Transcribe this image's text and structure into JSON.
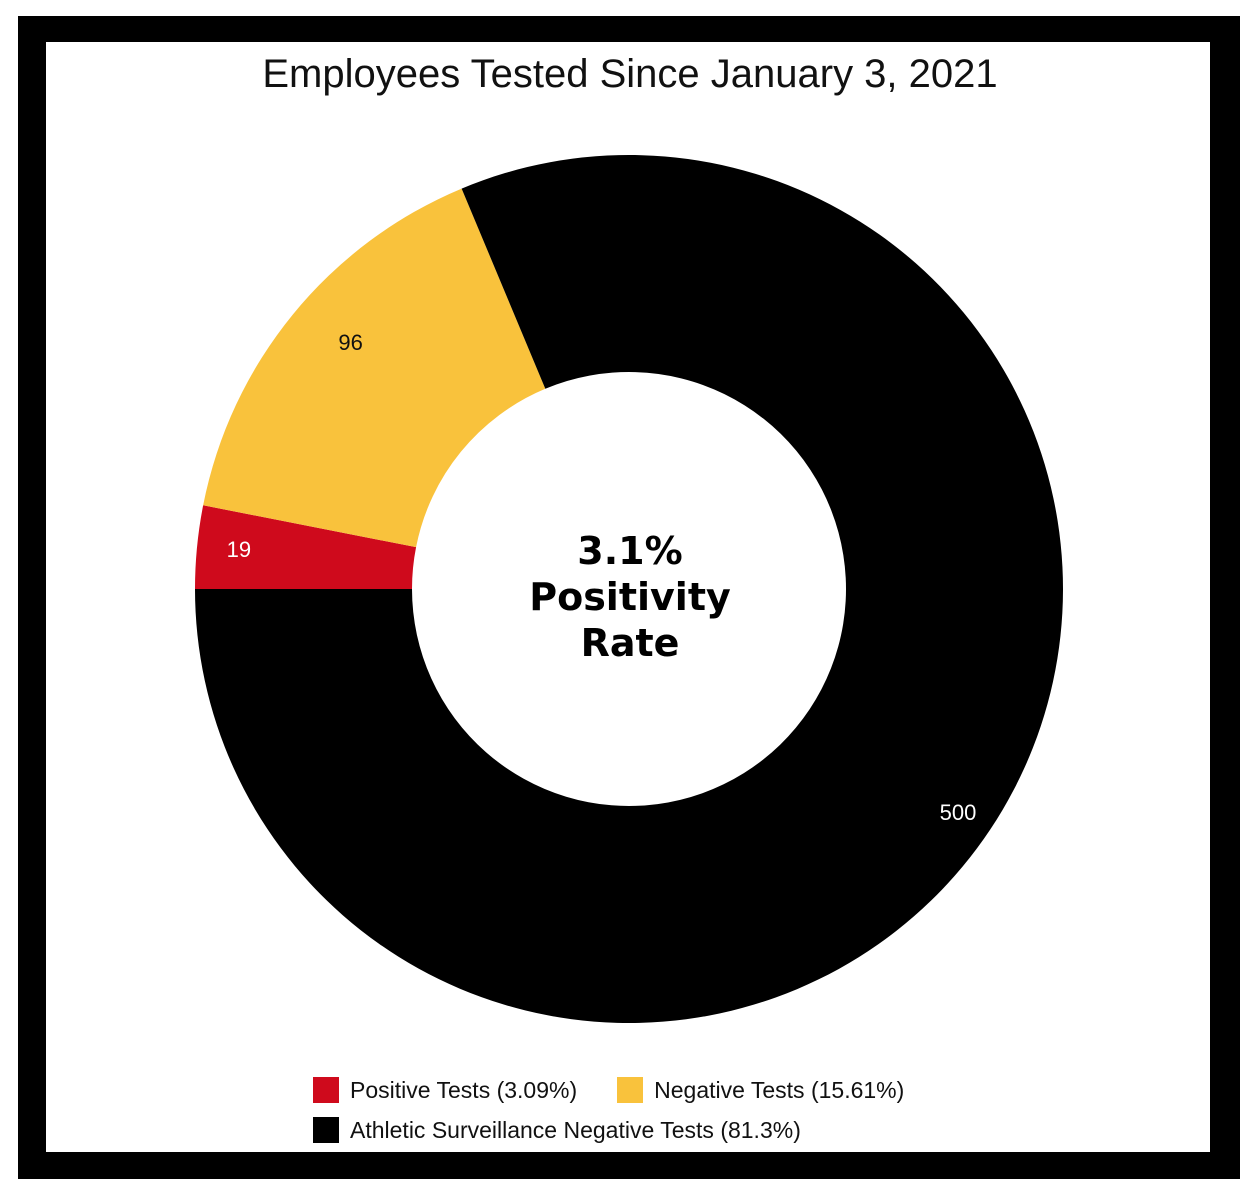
{
  "chart_data": {
    "type": "pie",
    "variant": "donut",
    "title": "Employees Tested Since January 3, 2021",
    "center_label": [
      "3.1%",
      "Positivity",
      "Rate"
    ],
    "series": [
      {
        "name": "Positive Tests (3.09%)",
        "value": 19,
        "label": "19",
        "color": "#cf0a1c",
        "label_color": "#ffffff"
      },
      {
        "name": "Negative Tests (15.61%)",
        "value": 96,
        "label": "96",
        "color": "#f9c23c",
        "label_color": "#111111"
      },
      {
        "name": "Athletic Surveillance Negative Tests (81.3%)",
        "value": 500,
        "label": "500",
        "color": "#000000",
        "label_color": "#ffffff"
      }
    ],
    "legend_position": "bottom"
  }
}
